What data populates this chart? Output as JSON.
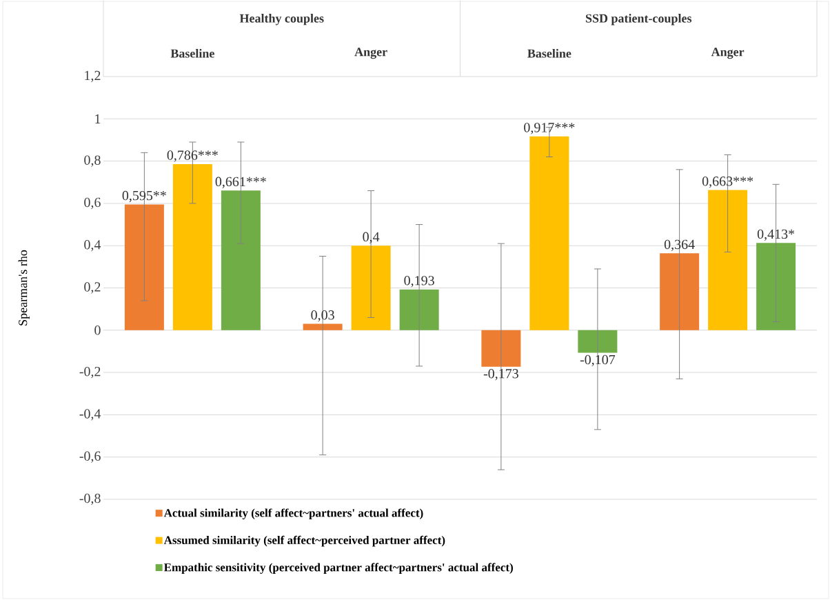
{
  "chart_data": {
    "type": "bar",
    "ylabel": "Spearman's rho",
    "categories": [
      "Baseline",
      "Anger",
      "Baseline",
      "Anger"
    ],
    "annotations": [
      "Healthy couples",
      "SSD patient-couples"
    ],
    "ylim": [
      -0.8,
      1.2
    ],
    "yticks": [
      {
        "value": -0.8,
        "label": "-0,8"
      },
      {
        "value": -0.6,
        "label": "-0,6"
      },
      {
        "value": -0.4,
        "label": "-0,4"
      },
      {
        "value": -0.2,
        "label": "-0,2"
      },
      0,
      {
        "value": 0.2,
        "label": "0,2"
      },
      {
        "value": 0.4,
        "label": "0,4"
      },
      {
        "value": 0.6,
        "label": "0,6"
      },
      {
        "value": 0.8,
        "label": "0,8"
      },
      1,
      {
        "value": 1.2,
        "label": "1,2"
      }
    ],
    "grid": "y",
    "legend": "bottom",
    "series": [
      {
        "name": "Actual similarity (self affect~partners' actual affect)",
        "color": "#ed7d31",
        "values": [
          0.595,
          0.03,
          -0.173,
          0.364
        ],
        "value_labels": [
          "0,595**",
          "0,03",
          "-0,173",
          "0,364"
        ],
        "errors": [
          [
            0.14,
            0.84
          ],
          [
            -0.59,
            0.35
          ],
          [
            -0.66,
            0.41
          ],
          [
            -0.23,
            0.76
          ]
        ]
      },
      {
        "name": "Assumed similarity (self affect~perceived partner affect)",
        "color": "#ffc000",
        "values": [
          0.786,
          0.4,
          0.917,
          0.663
        ],
        "value_labels": [
          "0,786***",
          "0,4",
          "0,917***",
          "0,663***"
        ],
        "errors": [
          [
            0.6,
            0.89
          ],
          [
            0.06,
            0.66
          ],
          [
            0.82,
            0.96
          ],
          [
            0.37,
            0.83
          ]
        ]
      },
      {
        "name": "Empathic sensitivity (perceived partner affect~partners' actual affect)",
        "color": "#70ad47",
        "values": [
          0.661,
          0.193,
          -0.107,
          0.413
        ],
        "value_labels": [
          "0,661***",
          "0,193",
          "-0,107",
          "0,413*"
        ],
        "errors": [
          [
            0.41,
            0.89
          ],
          [
            -0.17,
            0.5
          ],
          [
            -0.47,
            0.29
          ],
          [
            0.04,
            0.69
          ]
        ]
      }
    ]
  }
}
